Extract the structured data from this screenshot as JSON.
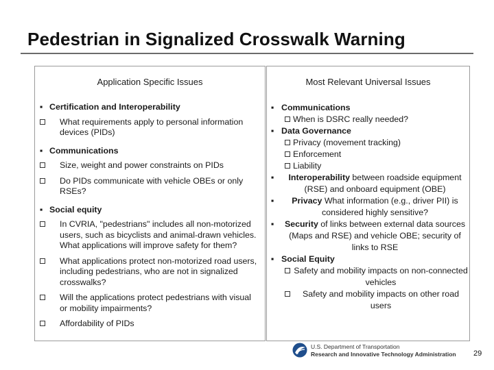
{
  "title": "Pedestrian in Signalized Crosswalk Warning",
  "left": {
    "heading": "Application Specific Issues",
    "groups": [
      {
        "label": "Certification and Interoperability",
        "items": [
          "What requirements apply to personal information devices (PIDs)"
        ]
      },
      {
        "label": "Communications",
        "items": [
          "Size, weight and power constraints on PIDs",
          "Do PIDs communicate with vehicle OBEs or only RSEs?"
        ]
      },
      {
        "label": "Social equity",
        "items": [
          "In CVRIA, \"pedestrians\" includes all non-motorized users, such as bicyclists and animal-drawn vehicles. What applications will improve safety for them?",
          "What applications protect non-motorized road users, including pedestrians, who are not in signalized crosswalks?",
          "Will the applications protect pedestrians with visual or mobility impairments?",
          "Affordability of PIDs"
        ]
      }
    ]
  },
  "right": {
    "heading": "Most Relevant Universal Issues",
    "comm_label": "Communications",
    "comm_item": "When is DSRC really needed?",
    "gov_label": "Data Governance",
    "gov_items": [
      "Privacy (movement tracking)",
      "Enforcement",
      "Liability"
    ],
    "interop_bold": "Interoperability",
    "interop_rest": " between roadside equipment (RSE) and onboard equipment (OBE)",
    "privacy_bold": "Privacy",
    "privacy_rest": " What information (e.g., driver PII) is considered highly sensitive?",
    "security_bold": "Security",
    "security_rest": " of links between external data sources (Maps and RSE) and vehicle OBE; security of links to RSE",
    "equity_label": "Social Equity",
    "equity_items": [
      "Safety and mobility impacts on non-connected vehicles",
      "Safety and mobility impacts on other road users"
    ]
  },
  "footer": {
    "agency_line1": "U.S. Department of Transportation",
    "agency_line2": "Research and Innovative Technology Administration",
    "page": "29"
  },
  "colors": {
    "border": "#9a9a9a",
    "rule": "#6b6b6b",
    "logo": "#1f4e8c"
  }
}
